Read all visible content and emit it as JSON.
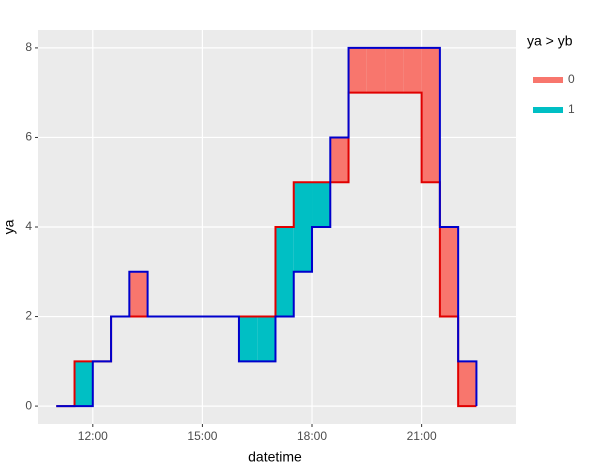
{
  "chart_data": {
    "type": "step-ribbon",
    "x_label": "datetime",
    "y_label": "ya",
    "x": [
      "11:00",
      "11:30",
      "12:00",
      "12:30",
      "13:00",
      "13:30",
      "14:00",
      "14:30",
      "15:00",
      "15:30",
      "16:00",
      "16:30",
      "17:00",
      "17:30",
      "18:00",
      "18:30",
      "19:00",
      "19:30",
      "20:00",
      "20:30",
      "21:00",
      "21:30",
      "22:00",
      "22:30"
    ],
    "series": [
      {
        "color": "#e00000",
        "values": [
          0,
          1,
          1,
          2,
          2,
          2,
          2,
          2,
          2,
          2,
          2,
          2,
          4,
          5,
          5,
          5,
          7,
          7,
          7,
          7,
          5,
          2,
          0,
          0
        ]
      },
      {
        "color": "#0000cc",
        "values": [
          0,
          0,
          1,
          2,
          3,
          2,
          2,
          2,
          2,
          2,
          1,
          1,
          2,
          3,
          4,
          6,
          8,
          8,
          8,
          8,
          8,
          4,
          1,
          0
        ]
      }
    ],
    "legend": {
      "title": "ya > yb",
      "position": "right",
      "entries": [
        {
          "label": "0",
          "color": "#F8766D"
        },
        {
          "label": "1",
          "color": "#00BFC4"
        }
      ]
    },
    "xlim": [
      "10:30",
      "23:35"
    ],
    "xticks": [
      "12:00",
      "15:00",
      "18:00",
      "21:00"
    ],
    "ylim": [
      -0.4,
      8.4
    ],
    "yticks": [
      0,
      2,
      4,
      6,
      8
    ],
    "grid": true
  }
}
